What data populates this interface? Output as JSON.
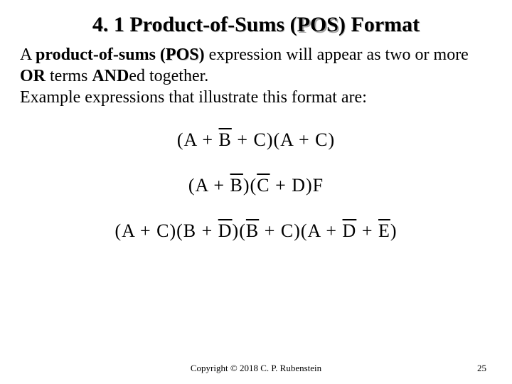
{
  "title": {
    "prefix": "4. 1 Product-of-Sums (",
    "pos": "POS",
    "suffix": ") Format"
  },
  "body": {
    "seg1": "A ",
    "seg2_bold": "product-of-sums (",
    "seg3_pos": "POS",
    "seg4_bold_close": ")",
    "seg5": " expression will appear as two or more ",
    "seg6_bold": "OR",
    "seg7": " terms ",
    "seg8_bold": "AND",
    "seg9": "ed together.",
    "seg10": "Example expressions that illustrate this format are:"
  },
  "equations": {
    "eq1": {
      "t1": "(A + ",
      "b1": "B",
      "t2": " + C)(A + C)"
    },
    "eq2": {
      "t1": "(A + ",
      "b1": "B",
      "t2": ")(",
      "b2": "C",
      "t3": " + D)F"
    },
    "eq3": {
      "t1": "(A + C)(B + ",
      "b1": "D",
      "t2": ")(",
      "b2": "B",
      "t3": " + C)(A + ",
      "b3": "D",
      "t4": " + ",
      "b4": "E",
      "t5": ")"
    }
  },
  "footer": {
    "copyright": "Copyright © 2018 C. P. Rubenstein",
    "page": "25"
  }
}
